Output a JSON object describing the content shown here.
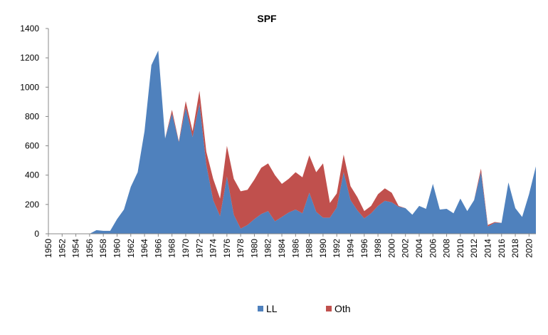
{
  "chart_data": {
    "type": "area",
    "title": "SPF",
    "stacked": true,
    "xlabel": "",
    "ylabel": "",
    "xlim": [
      1950,
      2021
    ],
    "ylim": [
      0,
      1400
    ],
    "y_ticks": [
      0,
      200,
      400,
      600,
      800,
      1000,
      1200,
      1400
    ],
    "x_tick_step": 2,
    "grid": false,
    "legend": "bottom",
    "x": [
      1950,
      1951,
      1952,
      1953,
      1954,
      1955,
      1956,
      1957,
      1958,
      1959,
      1960,
      1961,
      1962,
      1963,
      1964,
      1965,
      1966,
      1967,
      1968,
      1969,
      1970,
      1971,
      1972,
      1973,
      1974,
      1975,
      1976,
      1977,
      1978,
      1979,
      1980,
      1981,
      1982,
      1983,
      1984,
      1985,
      1986,
      1987,
      1988,
      1989,
      1990,
      1991,
      1992,
      1993,
      1994,
      1995,
      1996,
      1997,
      1998,
      1999,
      2000,
      2001,
      2002,
      2003,
      2004,
      2005,
      2006,
      2007,
      2008,
      2009,
      2010,
      2011,
      2012,
      2013,
      2014,
      2015,
      2016,
      2017,
      2018,
      2019,
      2020,
      2021
    ],
    "series": [
      {
        "name": "LL",
        "color": "#4f81bd",
        "values": [
          0,
          0,
          0,
          0,
          0,
          0,
          0,
          25,
          20,
          20,
          100,
          165,
          320,
          420,
          700,
          1150,
          1250,
          650,
          820,
          625,
          860,
          660,
          890,
          470,
          230,
          120,
          390,
          130,
          35,
          60,
          100,
          135,
          155,
          85,
          115,
          145,
          165,
          140,
          280,
          150,
          110,
          110,
          180,
          420,
          230,
          160,
          105,
          140,
          190,
          225,
          215,
          185,
          175,
          130,
          190,
          170,
          340,
          165,
          170,
          140,
          240,
          155,
          230,
          420,
          50,
          75,
          75,
          350,
          175,
          115,
          270,
          460
        ]
      },
      {
        "name": "Oth",
        "color": "#c0504d",
        "values": [
          0,
          0,
          0,
          0,
          0,
          0,
          0,
          0,
          0,
          0,
          0,
          0,
          0,
          0,
          0,
          0,
          0,
          0,
          25,
          5,
          45,
          40,
          85,
          90,
          145,
          120,
          210,
          245,
          255,
          240,
          270,
          315,
          325,
          315,
          225,
          230,
          255,
          245,
          255,
          270,
          370,
          100,
          95,
          120,
          95,
          90,
          50,
          50,
          80,
          85,
          65,
          5,
          0,
          0,
          0,
          0,
          0,
          0,
          0,
          0,
          0,
          0,
          0,
          25,
          10,
          5,
          0,
          0,
          0,
          0,
          0,
          0
        ]
      }
    ]
  }
}
